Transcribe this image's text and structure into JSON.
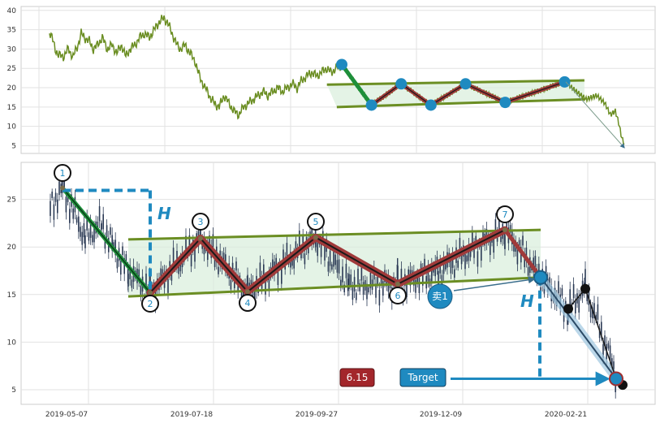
{
  "chart_data": [
    {
      "type": "line",
      "panel": "overview",
      "ylim": [
        3,
        41
      ],
      "yticks": [
        5,
        10,
        15,
        20,
        25,
        30,
        35,
        40
      ],
      "grid": true,
      "price_color": "#6b8e23",
      "pattern": {
        "points": [
          [
            0.0,
            26.0
          ],
          [
            0.06,
            15.5
          ],
          [
            0.12,
            21.0
          ],
          [
            0.18,
            15.5
          ],
          [
            0.25,
            21.0
          ],
          [
            0.33,
            16.2
          ],
          [
            0.45,
            21.5
          ]
        ],
        "upper_line": [
          [
            -0.03,
            20.8
          ],
          [
            0.49,
            21.9
          ]
        ],
        "lower_line": [
          [
            -0.01,
            15.0
          ],
          [
            0.49,
            17.0
          ]
        ]
      }
    },
    {
      "type": "candlestick",
      "panel": "pattern-detail",
      "ylim": [
        3.5,
        29
      ],
      "yticks": [
        5,
        10,
        15,
        20,
        25
      ],
      "x_tick_labels": [
        "2019-05-07",
        "2019-07-18",
        "2019-09-27",
        "2019-12-09",
        "2020-02-21"
      ],
      "grid": true,
      "pattern_points": [
        {
          "label": "1",
          "value": 26.2
        },
        {
          "label": "2",
          "value": 15.2
        },
        {
          "label": "3",
          "value": 20.9
        },
        {
          "label": "4",
          "value": 15.3
        },
        {
          "label": "5",
          "value": 21.0
        },
        {
          "label": "6",
          "value": 16.1
        },
        {
          "label": "7",
          "value": 21.8
        }
      ],
      "breakout": {
        "value": 16.8,
        "label": "卖1"
      },
      "after_breakout": [
        13.5,
        15.6
      ],
      "target": {
        "value": 6.15,
        "label": "Target",
        "value_label": "6.15"
      },
      "final_point": 5.5,
      "measure_label": "H",
      "colors": {
        "pole": "#1e8f3a",
        "zigzag": "#a03a3a",
        "channel": "#6b8e23",
        "channel_fill": "#d8eedc",
        "marker": "#1f8ac0",
        "target_box": "#1f8ac0",
        "value_box": "#a3262b",
        "candle": "#2b3a55"
      }
    }
  ]
}
